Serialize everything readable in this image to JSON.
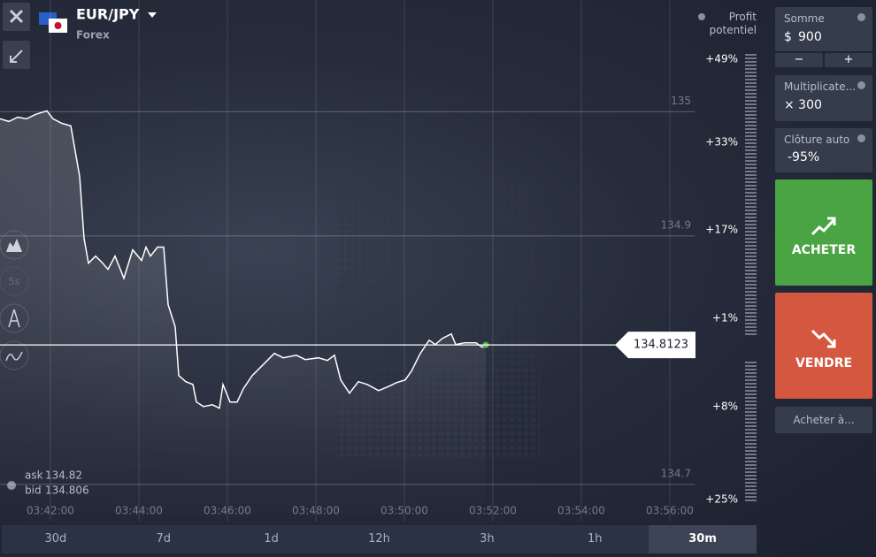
{
  "header": {
    "symbol": "EUR/JPY",
    "market": "Forex"
  },
  "toolbar": {
    "interval": "5s"
  },
  "quote": {
    "ask_label": "ask",
    "ask": 134.82,
    "bid_label": "bid",
    "bid": 134.806
  },
  "profit_scale": {
    "title": "Profit potentiel",
    "labels": [
      "+49%",
      "+33%",
      "+17%",
      "+1%",
      "+8%",
      "+25%"
    ]
  },
  "chart": {
    "type": "line",
    "color": "#ffffff",
    "xlim": [
      220.86,
      236.56
    ],
    "ylim": [
      134.67,
      135.09
    ],
    "xticks": [
      {
        "value": 222,
        "label": "03:42:00"
      },
      {
        "value": 224,
        "label": "03:44:00"
      },
      {
        "value": 226,
        "label": "03:46:00"
      },
      {
        "value": 228,
        "label": "03:48:00"
      },
      {
        "value": 230,
        "label": "03:50:00"
      },
      {
        "value": 232,
        "label": "03:52:00"
      },
      {
        "value": 234,
        "label": "03:54:00"
      },
      {
        "value": 236,
        "label": "03:56:00"
      }
    ],
    "yticks": [
      135,
      134.9,
      134.7
    ],
    "current_price": 134.8123,
    "x": [
      220.86,
      221.06,
      221.26,
      221.46,
      221.66,
      221.92,
      222.06,
      222.26,
      222.46,
      222.66,
      222.76,
      222.86,
      223.02,
      223.16,
      223.3,
      223.46,
      223.66,
      223.86,
      224.06,
      224.16,
      224.26,
      224.42,
      224.56,
      224.66,
      224.82,
      224.9,
      225.06,
      225.22,
      225.3,
      225.46,
      225.66,
      225.82,
      225.9,
      226.06,
      226.22,
      226.36,
      226.56,
      226.86,
      227.06,
      227.26,
      227.56,
      227.76,
      228.06,
      228.26,
      228.42,
      228.56,
      228.76,
      228.96,
      229.16,
      229.42,
      229.66,
      229.82,
      230.02,
      230.16,
      230.36,
      230.56,
      230.7,
      230.86,
      231.06,
      231.16,
      231.36,
      231.62,
      231.76,
      231.84
    ],
    "values": [
      134.9943,
      134.9922,
      134.9957,
      134.9943,
      134.9979,
      135.0007,
      134.9943,
      134.9907,
      134.9886,
      134.948,
      134.8981,
      134.8781,
      134.8838,
      134.8789,
      134.8732,
      134.8838,
      134.866,
      134.8888,
      134.8803,
      134.891,
      134.8838,
      134.891,
      134.891,
      134.8447,
      134.8268,
      134.7876,
      134.7827,
      134.7805,
      134.7663,
      134.7627,
      134.7641,
      134.7613,
      134.7805,
      134.7663,
      134.7663,
      134.777,
      134.7876,
      134.7983,
      134.8055,
      134.8019,
      134.804,
      134.8005,
      134.8019,
      134.7998,
      134.804,
      134.7841,
      134.7734,
      134.7827,
      134.7805,
      134.7755,
      134.7791,
      134.7819,
      134.7841,
      134.7912,
      134.8055,
      134.8161,
      134.8126,
      134.8176,
      134.8211,
      134.8126,
      134.814,
      134.814,
      134.8104,
      134.8123
    ]
  },
  "timeframes": {
    "items": [
      "30d",
      "7d",
      "1d",
      "12h",
      "3h",
      "1h",
      "30m"
    ],
    "active": 6
  },
  "sidebar": {
    "amount_label": "Somme",
    "currency": "$",
    "amount": 900,
    "minus": "−",
    "plus": "+",
    "multiplier_label": "Multiplicate...",
    "multiplier": "× 300",
    "auto_close_label": "Clôture auto",
    "auto_close": "-95%",
    "buy": "ACHETER",
    "sell": "VENDRE",
    "buy_at": "Acheter à..."
  }
}
